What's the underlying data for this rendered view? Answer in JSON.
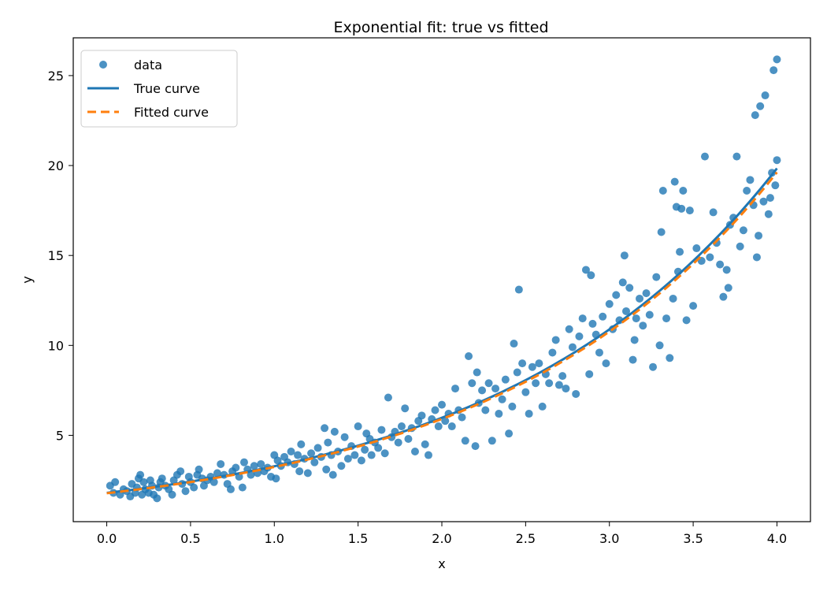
{
  "chart_data": {
    "type": "scatter",
    "title": "Exponential fit: true vs fitted",
    "xlabel": "x",
    "ylabel": "y",
    "xlim": [
      -0.2,
      4.2
    ],
    "ylim": [
      0.2,
      27.1
    ],
    "xticks": [
      0.0,
      0.5,
      1.0,
      1.5,
      2.0,
      2.5,
      3.0,
      3.5,
      4.0
    ],
    "yticks": [
      5,
      10,
      15,
      20,
      25
    ],
    "grid": false,
    "legend_position": "top-left",
    "colors": {
      "data": "#1f77b4",
      "true_curve": "#1f77b4",
      "fitted_curve": "#ff7f0e"
    },
    "series": [
      {
        "name": "data",
        "kind": "scatter",
        "points": [
          [
            0.02,
            2.2
          ],
          [
            0.04,
            1.8
          ],
          [
            0.05,
            2.4
          ],
          [
            0.08,
            1.7
          ],
          [
            0.1,
            2.0
          ],
          [
            0.12,
            1.9
          ],
          [
            0.14,
            1.6
          ],
          [
            0.15,
            2.3
          ],
          [
            0.17,
            1.8
          ],
          [
            0.18,
            2.1
          ],
          [
            0.19,
            2.6
          ],
          [
            0.2,
            2.8
          ],
          [
            0.21,
            1.7
          ],
          [
            0.22,
            2.4
          ],
          [
            0.23,
            2.0
          ],
          [
            0.25,
            1.8
          ],
          [
            0.26,
            2.5
          ],
          [
            0.27,
            2.2
          ],
          [
            0.28,
            1.7
          ],
          [
            0.3,
            1.5
          ],
          [
            0.31,
            2.1
          ],
          [
            0.32,
            2.4
          ],
          [
            0.33,
            2.6
          ],
          [
            0.35,
            2.2
          ],
          [
            0.37,
            2.0
          ],
          [
            0.39,
            1.7
          ],
          [
            0.4,
            2.5
          ],
          [
            0.42,
            2.8
          ],
          [
            0.44,
            3.0
          ],
          [
            0.45,
            2.3
          ],
          [
            0.47,
            1.9
          ],
          [
            0.49,
            2.7
          ],
          [
            0.5,
            2.4
          ],
          [
            0.52,
            2.1
          ],
          [
            0.54,
            2.8
          ],
          [
            0.55,
            3.1
          ],
          [
            0.57,
            2.6
          ],
          [
            0.58,
            2.2
          ],
          [
            0.6,
            2.5
          ],
          [
            0.62,
            2.7
          ],
          [
            0.64,
            2.4
          ],
          [
            0.66,
            2.9
          ],
          [
            0.68,
            3.4
          ],
          [
            0.7,
            2.8
          ],
          [
            0.72,
            2.3
          ],
          [
            0.74,
            2.0
          ],
          [
            0.75,
            3.0
          ],
          [
            0.77,
            3.2
          ],
          [
            0.79,
            2.7
          ],
          [
            0.81,
            2.1
          ],
          [
            0.82,
            3.5
          ],
          [
            0.84,
            3.1
          ],
          [
            0.86,
            2.8
          ],
          [
            0.88,
            3.3
          ],
          [
            0.9,
            2.9
          ],
          [
            0.92,
            3.4
          ],
          [
            0.94,
            3.0
          ],
          [
            0.96,
            3.2
          ],
          [
            0.98,
            2.7
          ],
          [
            1.0,
            3.9
          ],
          [
            1.01,
            2.6
          ],
          [
            1.02,
            3.6
          ],
          [
            1.04,
            3.3
          ],
          [
            1.06,
            3.8
          ],
          [
            1.08,
            3.5
          ],
          [
            1.1,
            4.1
          ],
          [
            1.12,
            3.4
          ],
          [
            1.14,
            3.9
          ],
          [
            1.15,
            3.0
          ],
          [
            1.16,
            4.5
          ],
          [
            1.18,
            3.7
          ],
          [
            1.2,
            2.9
          ],
          [
            1.22,
            4.0
          ],
          [
            1.24,
            3.5
          ],
          [
            1.26,
            4.3
          ],
          [
            1.28,
            3.8
          ],
          [
            1.3,
            5.4
          ],
          [
            1.31,
            3.1
          ],
          [
            1.32,
            4.6
          ],
          [
            1.34,
            3.9
          ],
          [
            1.35,
            2.8
          ],
          [
            1.36,
            5.2
          ],
          [
            1.38,
            4.1
          ],
          [
            1.4,
            3.3
          ],
          [
            1.42,
            4.9
          ],
          [
            1.44,
            3.7
          ],
          [
            1.46,
            4.4
          ],
          [
            1.48,
            3.9
          ],
          [
            1.5,
            5.5
          ],
          [
            1.52,
            3.6
          ],
          [
            1.54,
            4.2
          ],
          [
            1.55,
            5.1
          ],
          [
            1.57,
            4.8
          ],
          [
            1.58,
            3.9
          ],
          [
            1.6,
            4.6
          ],
          [
            1.62,
            4.3
          ],
          [
            1.64,
            5.3
          ],
          [
            1.66,
            4.0
          ],
          [
            1.68,
            7.1
          ],
          [
            1.7,
            4.9
          ],
          [
            1.72,
            5.2
          ],
          [
            1.74,
            4.6
          ],
          [
            1.76,
            5.5
          ],
          [
            1.78,
            6.5
          ],
          [
            1.8,
            4.8
          ],
          [
            1.82,
            5.4
          ],
          [
            1.84,
            4.1
          ],
          [
            1.86,
            5.8
          ],
          [
            1.88,
            6.1
          ],
          [
            1.9,
            4.5
          ],
          [
            1.92,
            3.9
          ],
          [
            1.94,
            5.9
          ],
          [
            1.96,
            6.4
          ],
          [
            1.98,
            5.5
          ],
          [
            2.0,
            6.7
          ],
          [
            2.02,
            5.8
          ],
          [
            2.04,
            6.2
          ],
          [
            2.06,
            5.5
          ],
          [
            2.08,
            7.6
          ],
          [
            2.1,
            6.4
          ],
          [
            2.12,
            6.0
          ],
          [
            2.14,
            4.7
          ],
          [
            2.16,
            9.4
          ],
          [
            2.18,
            7.9
          ],
          [
            2.2,
            4.4
          ],
          [
            2.21,
            8.5
          ],
          [
            2.22,
            6.8
          ],
          [
            2.24,
            7.5
          ],
          [
            2.26,
            6.4
          ],
          [
            2.28,
            7.9
          ],
          [
            2.3,
            4.7
          ],
          [
            2.32,
            7.6
          ],
          [
            2.34,
            6.2
          ],
          [
            2.36,
            7.0
          ],
          [
            2.38,
            8.1
          ],
          [
            2.4,
            5.1
          ],
          [
            2.42,
            6.6
          ],
          [
            2.43,
            10.1
          ],
          [
            2.45,
            8.5
          ],
          [
            2.46,
            13.1
          ],
          [
            2.48,
            9.0
          ],
          [
            2.5,
            7.4
          ],
          [
            2.52,
            6.2
          ],
          [
            2.54,
            8.8
          ],
          [
            2.56,
            7.9
          ],
          [
            2.58,
            9.0
          ],
          [
            2.6,
            6.6
          ],
          [
            2.62,
            8.4
          ],
          [
            2.64,
            7.9
          ],
          [
            2.66,
            9.6
          ],
          [
            2.68,
            10.3
          ],
          [
            2.7,
            7.8
          ],
          [
            2.72,
            8.3
          ],
          [
            2.74,
            7.6
          ],
          [
            2.76,
            10.9
          ],
          [
            2.78,
            9.9
          ],
          [
            2.8,
            7.3
          ],
          [
            2.82,
            10.5
          ],
          [
            2.84,
            11.5
          ],
          [
            2.86,
            14.2
          ],
          [
            2.88,
            8.4
          ],
          [
            2.89,
            13.9
          ],
          [
            2.9,
            11.2
          ],
          [
            2.92,
            10.6
          ],
          [
            2.94,
            9.6
          ],
          [
            2.96,
            11.6
          ],
          [
            2.98,
            9.0
          ],
          [
            3.0,
            12.3
          ],
          [
            3.02,
            10.9
          ],
          [
            3.04,
            12.8
          ],
          [
            3.06,
            11.4
          ],
          [
            3.08,
            13.5
          ],
          [
            3.09,
            15.0
          ],
          [
            3.1,
            11.9
          ],
          [
            3.12,
            13.2
          ],
          [
            3.14,
            9.2
          ],
          [
            3.15,
            10.3
          ],
          [
            3.16,
            11.5
          ],
          [
            3.18,
            12.6
          ],
          [
            3.2,
            11.1
          ],
          [
            3.22,
            12.9
          ],
          [
            3.24,
            11.7
          ],
          [
            3.26,
            8.8
          ],
          [
            3.28,
            13.8
          ],
          [
            3.3,
            10.0
          ],
          [
            3.31,
            16.3
          ],
          [
            3.32,
            18.6
          ],
          [
            3.34,
            11.5
          ],
          [
            3.36,
            9.3
          ],
          [
            3.38,
            12.6
          ],
          [
            3.39,
            19.1
          ],
          [
            3.4,
            17.7
          ],
          [
            3.41,
            14.1
          ],
          [
            3.42,
            15.2
          ],
          [
            3.43,
            17.6
          ],
          [
            3.44,
            18.6
          ],
          [
            3.46,
            11.4
          ],
          [
            3.48,
            17.5
          ],
          [
            3.5,
            12.2
          ],
          [
            3.52,
            15.4
          ],
          [
            3.55,
            14.7
          ],
          [
            3.57,
            20.5
          ],
          [
            3.6,
            14.9
          ],
          [
            3.62,
            17.4
          ],
          [
            3.64,
            15.7
          ],
          [
            3.66,
            14.5
          ],
          [
            3.68,
            12.7
          ],
          [
            3.7,
            14.2
          ],
          [
            3.71,
            13.2
          ],
          [
            3.72,
            16.7
          ],
          [
            3.74,
            17.1
          ],
          [
            3.76,
            20.5
          ],
          [
            3.78,
            15.5
          ],
          [
            3.8,
            16.4
          ],
          [
            3.82,
            18.6
          ],
          [
            3.84,
            19.2
          ],
          [
            3.86,
            17.8
          ],
          [
            3.87,
            22.8
          ],
          [
            3.88,
            14.9
          ],
          [
            3.89,
            16.1
          ],
          [
            3.9,
            23.3
          ],
          [
            3.92,
            18.0
          ],
          [
            3.93,
            23.9
          ],
          [
            3.95,
            17.3
          ],
          [
            3.96,
            18.2
          ],
          [
            3.97,
            19.6
          ],
          [
            3.98,
            25.3
          ],
          [
            3.99,
            18.9
          ],
          [
            4.0,
            25.9
          ],
          [
            4.0,
            20.3
          ]
        ]
      },
      {
        "name": "True curve",
        "kind": "line",
        "function": "1.8*exp(0.6*x)",
        "x_range": [
          0.0,
          4.0
        ]
      },
      {
        "name": "Fitted curve",
        "kind": "line",
        "style": "dashed",
        "function": "1.78*exp(0.6*x)",
        "x_range": [
          0.0,
          4.0
        ]
      }
    ]
  }
}
